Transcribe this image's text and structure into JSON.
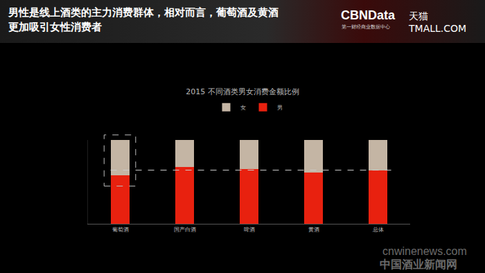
{
  "slide": {
    "headline": [
      "男性是线上酒类的主力消费群体，相对而言，葡萄酒及黄酒",
      "更加吸引女性消费者"
    ],
    "brand": "CBNData",
    "brand_sub": "第一财经商业数据中心",
    "partner": "天猫 TMALL.COM",
    "watermark": "cnwinenews.com",
    "watermark_cn": "中国酒业新闻网"
  },
  "chart_data": {
    "type": "bar",
    "title": "2015 不同酒类男女消费金额比例",
    "categories": [
      "葡萄酒",
      "国产白酒",
      "啤酒",
      "黄酒",
      "总体"
    ],
    "series": [
      {
        "name": "男",
        "color": "#e8210f",
        "values": [
          58,
          68,
          65,
          61,
          64
        ]
      },
      {
        "name": "女",
        "color": "#c4b5a4",
        "values": [
          42,
          32,
          35,
          39,
          36
        ]
      }
    ],
    "stacked": true,
    "ylim": [
      0,
      100
    ],
    "legend": "top",
    "tick_labels": "x",
    "grid": false
  }
}
